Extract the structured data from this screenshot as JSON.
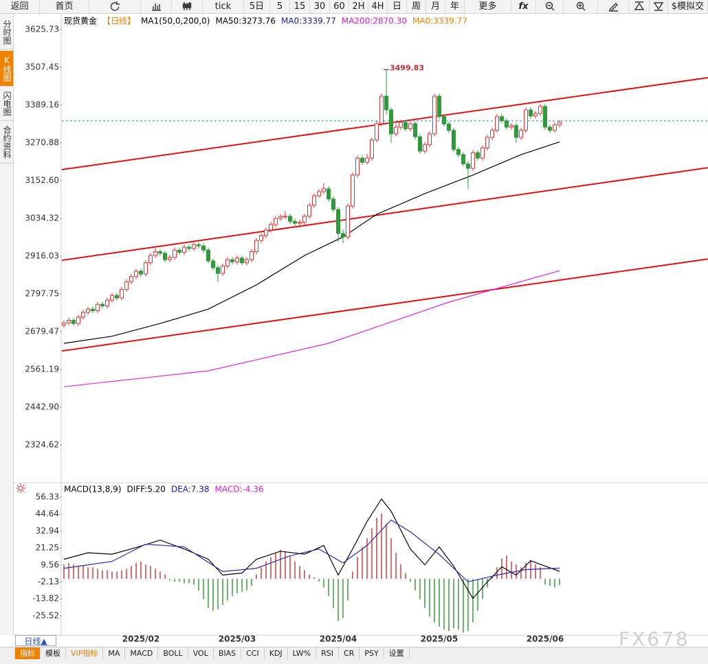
{
  "toolbar": [
    "返回",
    "首页",
    "tick",
    "5日",
    "5",
    "15",
    "30",
    "60",
    "2H",
    "4H",
    "日",
    "周",
    "月",
    "年",
    "更多",
    "fx",
    "$模拟交"
  ],
  "side_tabs": [
    "分时图",
    "K线图",
    "闪电图",
    "合约资料"
  ],
  "period_button": "日线▲",
  "bottom_tabs": [
    "指标",
    "模板",
    "VIP指标",
    "MA",
    "MACD",
    "BOLL",
    "VOL",
    "BIAS",
    "CCI",
    "KDJ",
    "LW%",
    "RSI",
    "CR",
    "PSY",
    "设置"
  ],
  "watermark": "FX678",
  "chart_data": [
    {
      "type": "candlestick",
      "legend": [
        {
          "text": "现货黄金",
          "color": "#000000"
        },
        {
          "text": "【日线】",
          "color": "#f08000"
        },
        {
          "text": "MA1(50,0,200,0)",
          "color": "#000000"
        },
        {
          "text": "MA50:3273.76",
          "color": "#000000"
        },
        {
          "text": "MA0:3339.77",
          "color": "#1a1aa0"
        },
        {
          "text": "MA200:2870.30",
          "color": "#d020d0"
        },
        {
          "text": "MA0:3339.77",
          "color": "#f08000"
        }
      ],
      "high_label": "3499.83",
      "categories": [
        null,
        null,
        null,
        null,
        null,
        null,
        null,
        null,
        null,
        null,
        null,
        null,
        null,
        null,
        null,
        null,
        "2025/02",
        null,
        null,
        null,
        null,
        null,
        null,
        null,
        null,
        null,
        null,
        null,
        null,
        null,
        null,
        null,
        null,
        null,
        null,
        null,
        "2025/03",
        null,
        null,
        null,
        null,
        null,
        null,
        null,
        null,
        null,
        null,
        null,
        null,
        null,
        null,
        null,
        null,
        null,
        null,
        null,
        null,
        "2025/04",
        null,
        null,
        null,
        null,
        null,
        null,
        null,
        null,
        null,
        null,
        null,
        null,
        null,
        null,
        null,
        null,
        null,
        null,
        null,
        null,
        "2025/05",
        null,
        null,
        null,
        null,
        null,
        null,
        null,
        null,
        null,
        null,
        null,
        null,
        null,
        null,
        null,
        null,
        null,
        null,
        null,
        null,
        null,
        "2025/06",
        null,
        null,
        null
      ],
      "ohlc": [
        [
          2700,
          2715,
          2692,
          2707
        ],
        [
          2707,
          2723,
          2699,
          2715
        ],
        [
          2715,
          2723,
          2697,
          2705
        ],
        [
          2705,
          2733,
          2697,
          2725
        ],
        [
          2725,
          2748,
          2717,
          2740
        ],
        [
          2740,
          2758,
          2732,
          2750
        ],
        [
          2750,
          2758,
          2737,
          2745
        ],
        [
          2745,
          2773,
          2737,
          2765
        ],
        [
          2765,
          2773,
          2752,
          2760
        ],
        [
          2760,
          2786,
          2752,
          2778
        ],
        [
          2778,
          2801,
          2770,
          2793
        ],
        [
          2793,
          2801,
          2777,
          2785
        ],
        [
          2785,
          2820,
          2777,
          2812
        ],
        [
          2812,
          2844,
          2804,
          2836
        ],
        [
          2836,
          2860,
          2828,
          2852
        ],
        [
          2852,
          2877,
          2844,
          2869
        ],
        [
          2869,
          2877,
          2852,
          2860
        ],
        [
          2860,
          2903,
          2852,
          2895
        ],
        [
          2895,
          2926,
          2887,
          2918
        ],
        [
          2918,
          2942,
          2910,
          2930
        ],
        [
          2930,
          2938,
          2917,
          2925
        ],
        [
          2925,
          2933,
          2897,
          2905
        ],
        [
          2905,
          2920,
          2897,
          2912
        ],
        [
          2912,
          2943,
          2904,
          2935
        ],
        [
          2935,
          2943,
          2920,
          2928
        ],
        [
          2928,
          2952,
          2920,
          2944
        ],
        [
          2944,
          2952,
          2932,
          2940
        ],
        [
          2940,
          2960,
          2932,
          2952
        ],
        [
          2952,
          2960,
          2940,
          2948
        ],
        [
          2948,
          2956,
          2927,
          2935
        ],
        [
          2935,
          2943,
          2893,
          2901
        ],
        [
          2901,
          2909,
          2872,
          2880
        ],
        [
          2880,
          2888,
          2835,
          2862
        ],
        [
          2862,
          2893,
          2854,
          2885
        ],
        [
          2885,
          2913,
          2877,
          2905
        ],
        [
          2905,
          2913,
          2890,
          2898
        ],
        [
          2898,
          2918,
          2890,
          2910
        ],
        [
          2910,
          2918,
          2887,
          2895
        ],
        [
          2895,
          2913,
          2887,
          2905
        ],
        [
          2905,
          2938,
          2897,
          2930
        ],
        [
          2930,
          2973,
          2922,
          2965
        ],
        [
          2965,
          2988,
          2957,
          2980
        ],
        [
          2980,
          3006,
          2972,
          2998
        ],
        [
          2998,
          3023,
          2990,
          3015
        ],
        [
          3015,
          3042,
          3007,
          3034
        ],
        [
          3034,
          3048,
          3026,
          3040
        ],
        [
          3040,
          3057,
          3032,
          3041
        ],
        [
          3041,
          3049,
          3017,
          3025
        ],
        [
          3025,
          3033,
          3011,
          3019
        ],
        [
          3019,
          3030,
          3011,
          3022
        ],
        [
          3022,
          3049,
          3014,
          3041
        ],
        [
          3041,
          3083,
          3033,
          3075
        ],
        [
          3075,
          3113,
          3067,
          3105
        ],
        [
          3105,
          3126,
          3097,
          3118
        ],
        [
          3118,
          3145,
          3110,
          3127
        ],
        [
          3127,
          3135,
          3087,
          3095
        ],
        [
          3095,
          3103,
          3054,
          3062
        ],
        [
          3062,
          3070,
          2960,
          2987
        ],
        [
          2987,
          3000,
          2956,
          2976
        ],
        [
          2976,
          3081,
          2968,
          3073
        ],
        [
          3073,
          3178,
          3065,
          3170
        ],
        [
          3170,
          3231,
          3162,
          3223
        ],
        [
          3223,
          3231,
          3202,
          3210
        ],
        [
          3210,
          3237,
          3202,
          3223
        ],
        [
          3223,
          3288,
          3215,
          3280
        ],
        [
          3280,
          3339,
          3272,
          3331
        ],
        [
          3331,
          3425,
          3323,
          3417
        ],
        [
          3417,
          3499.83,
          3360,
          3374
        ],
        [
          3374,
          3382,
          3270,
          3299
        ],
        [
          3299,
          3330,
          3291,
          3320
        ],
        [
          3320,
          3343,
          3312,
          3335
        ],
        [
          3335,
          3343,
          3307,
          3315
        ],
        [
          3315,
          3339,
          3307,
          3331
        ],
        [
          3331,
          3339,
          3282,
          3290
        ],
        [
          3290,
          3298,
          3237,
          3245
        ],
        [
          3245,
          3273,
          3237,
          3265
        ],
        [
          3265,
          3307,
          3257,
          3299
        ],
        [
          3299,
          3425,
          3291,
          3417
        ],
        [
          3417,
          3425,
          3345,
          3353
        ],
        [
          3353,
          3361,
          3322,
          3330
        ],
        [
          3330,
          3338,
          3302,
          3310
        ],
        [
          3310,
          3318,
          3242,
          3250
        ],
        [
          3250,
          3258,
          3226,
          3234
        ],
        [
          3234,
          3242,
          3197,
          3205
        ],
        [
          3205,
          3213,
          3127,
          3191
        ],
        [
          3191,
          3248,
          3183,
          3240
        ],
        [
          3240,
          3248,
          3215,
          3223
        ],
        [
          3223,
          3263,
          3215,
          3255
        ],
        [
          3255,
          3296,
          3247,
          3288
        ],
        [
          3288,
          3318,
          3280,
          3310
        ],
        [
          3310,
          3361,
          3302,
          3353
        ],
        [
          3353,
          3361,
          3332,
          3340
        ],
        [
          3340,
          3348,
          3312,
          3320
        ],
        [
          3320,
          3333,
          3312,
          3325
        ],
        [
          3325,
          3333,
          3270,
          3288
        ],
        [
          3288,
          3318,
          3280,
          3310
        ],
        [
          3310,
          3382,
          3302,
          3374
        ],
        [
          3374,
          3382,
          3347,
          3355
        ],
        [
          3355,
          3371,
          3347,
          3363
        ],
        [
          3363,
          3393,
          3355,
          3385
        ],
        [
          3385,
          3393,
          3312,
          3320
        ],
        [
          3320,
          3328,
          3302,
          3310
        ],
        [
          3310,
          3335,
          3302,
          3327
        ],
        [
          3327,
          3343,
          3319,
          3335
        ]
      ],
      "up_color": "#e03030",
      "down_color": "#2e9a3a",
      "lines": [
        {
          "color": "#000000",
          "x": [
            0,
            10,
            20,
            30,
            40,
            50,
            58,
            65,
            75,
            85,
            95,
            103
          ],
          "values": [
            2643,
            2665,
            2705,
            2750,
            2826,
            2918,
            2976,
            3047,
            3112,
            3170,
            3234,
            3273.76
          ]
        },
        {
          "color": "#e020e0",
          "x": [
            0,
            30,
            55,
            80,
            103
          ],
          "values": [
            2507,
            2557,
            2643,
            2772,
            2870.3
          ]
        }
      ],
      "hline": 3339.77,
      "hline_color": "#2a7fb0",
      "trendlines": [
        {
          "values": [
            3187,
            3475
          ]
        },
        {
          "values": [
            2903,
            3193
          ]
        },
        {
          "values": [
            2619,
            2907
          ]
        }
      ],
      "trendline_color": "#e01010",
      "xlim": [
        -0.43,
        133.86
      ],
      "ylim": [
        2212.8,
        3670.9
      ],
      "yticks": [
        3625.73,
        3507.45,
        3389.16,
        3270.88,
        {
          "value": 3152.6,
          "label": "3152.60"
        },
        3034.32,
        2916.03,
        2797.75,
        2679.47,
        2561.19,
        {
          "value": 2442.9,
          "label": "2442.90"
        },
        2324.62
      ]
    },
    {
      "type": "macd",
      "legend": [
        {
          "text": "MACD(13,8,9)",
          "color": "#000000"
        },
        {
          "text": "DIFF:5.20",
          "color": "#000000"
        },
        {
          "text": "DEA:7.38",
          "color": "#1a1aa0"
        },
        {
          "text": "MACD:-4.36",
          "color": "#d020d0"
        }
      ],
      "histogram": [
        10,
        11,
        10,
        9,
        9,
        8,
        8,
        7,
        6,
        6,
        5,
        5,
        6,
        7,
        9,
        11,
        12,
        10,
        9,
        7,
        5,
        3,
        -1,
        -2,
        -2,
        -3,
        -3,
        -4,
        -8,
        -14,
        -20,
        -22,
        -21,
        -18,
        -15,
        -12,
        -10,
        -9,
        -8,
        -5,
        3,
        8,
        12,
        15,
        18,
        20,
        19,
        16,
        12,
        9,
        6,
        3,
        1,
        -2,
        -6,
        -12,
        -20,
        -29,
        -27,
        -15,
        5,
        15,
        22,
        28,
        35,
        42,
        45,
        38,
        28,
        18,
        10,
        4,
        -2,
        -8,
        -14,
        -20,
        -26,
        -30,
        -33,
        -35,
        -36,
        -34,
        -35,
        -37,
        -36,
        -30,
        -22,
        -14,
        -6,
        2,
        8,
        14,
        16,
        12,
        10,
        8,
        11,
        13,
        10,
        8,
        -4,
        -5,
        -6,
        -4.36
      ],
      "up_color": "#d04040",
      "down_color": "#3c9a3c",
      "lines": [
        {
          "color": "#000000",
          "x": [
            0,
            5,
            10,
            15,
            20,
            25,
            30,
            33,
            37,
            40,
            45,
            50,
            54,
            57,
            60,
            63,
            66,
            68,
            72,
            75,
            78,
            81,
            85,
            88,
            91,
            94,
            97,
            100,
            103
          ],
          "values": [
            13.5,
            18,
            17,
            21.6,
            26.7,
            20.6,
            13.5,
            2.6,
            4,
            13.5,
            19,
            17,
            23,
            2.6,
            20.6,
            39.5,
            55.1,
            46.6,
            20.6,
            9.7,
            22,
            8.8,
            -13.5,
            -2.1,
            8.3,
            2.6,
            12.5,
            8.8,
            5.2
          ]
        },
        {
          "color": "#2a2ab0",
          "x": [
            0,
            10,
            17,
            25,
            33,
            40,
            47,
            53,
            58,
            63,
            68,
            72,
            78,
            84,
            90,
            96,
            103
          ],
          "values": [
            7.3,
            12,
            23.9,
            22,
            5,
            7.3,
            15.9,
            20.6,
            11,
            23,
            40.5,
            32.4,
            16.8,
            -2.1,
            2.6,
            6.4,
            7.38
          ]
        }
      ],
      "ylim": [
        -38.8,
        65.3
      ],
      "yticks": [
        56.33,
        44.64,
        32.94,
        21.25,
        9.56,
        -2.13,
        -13.82,
        -25.52
      ]
    }
  ]
}
